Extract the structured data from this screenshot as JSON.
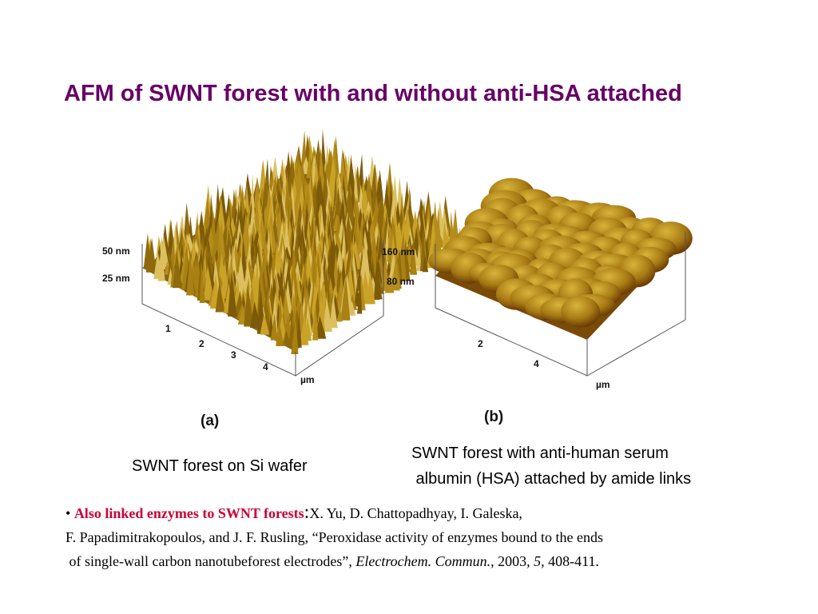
{
  "title": "AFM of SWNT forest with and without anti-HSA attached",
  "figures": [
    {
      "label": "(a)",
      "z_labels": [
        "50 nm",
        "25 nm"
      ],
      "x_labels": [
        "1",
        "2",
        "3",
        "4"
      ],
      "unit": "µm",
      "caption": [
        "SWNT forest on Si wafer"
      ]
    },
    {
      "label": "(b)",
      "z_labels": [
        "160 nm",
        "80 nm"
      ],
      "x_labels": [
        "2",
        "4"
      ],
      "unit": "µm",
      "caption": [
        "SWNT forest with anti-human serum",
        " albumin (HSA) attached by amide links"
      ]
    }
  ],
  "citation": {
    "bullet": "•",
    "highlight": "Also linked enzymes to SWNT forests",
    "colon": ":",
    "line1": "X. Yu, D. Chattopadhyay, I. Galeska,",
    "line2": "F. Papadimitrakopoulos, and J. F. Rusling, “Peroxidase activity of enzymes bound to the ends",
    "line3_start": " of single-wall carbon nanotubeforest electrodes”, ",
    "journal": "Electrochem. Commun.",
    "sep1": ", 2003, ",
    "volume": "5",
    "pages": ", 408-411."
  }
}
